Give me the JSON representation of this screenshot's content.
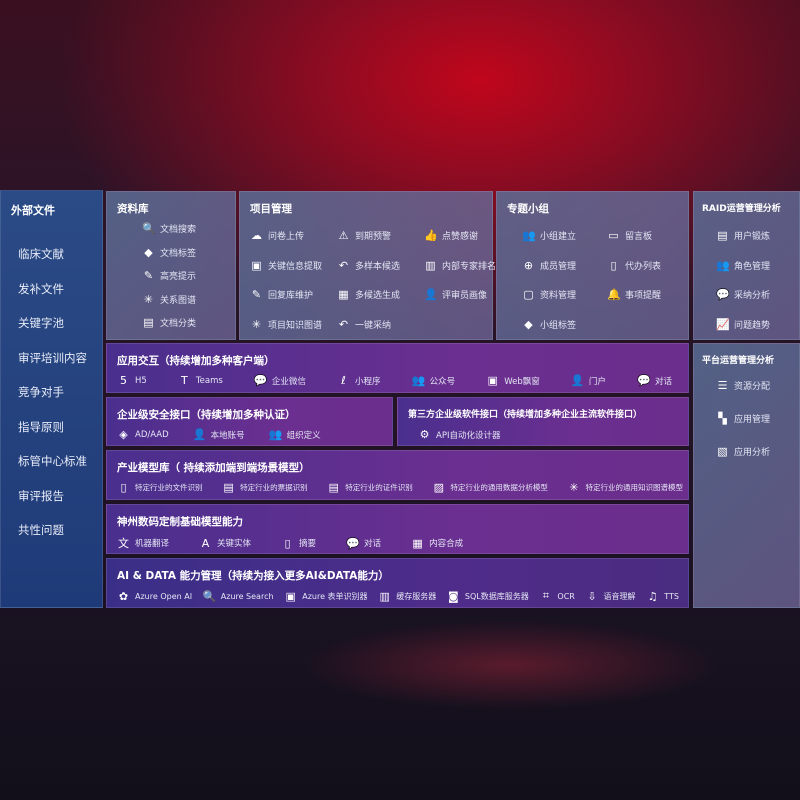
{
  "sidebar": {
    "title": "外部文件",
    "items": [
      "临床文献",
      "发补文件",
      "关键字池",
      "审评培训内容",
      "竞争对手",
      "指导原则",
      "标管中心标准",
      "审评报告",
      "共性问题"
    ]
  },
  "library": {
    "title": "资料库",
    "items": [
      {
        "icon": "doc-search-icon",
        "label": "文档搜索"
      },
      {
        "icon": "tag-icon",
        "label": "文档标签"
      },
      {
        "icon": "pen-icon",
        "label": "高亮提示"
      },
      {
        "icon": "graph-icon",
        "label": "关系图谱"
      },
      {
        "icon": "doc-classify-icon",
        "label": "文档分类"
      }
    ]
  },
  "project": {
    "title": "项目管理",
    "items": [
      {
        "icon": "cloud-upload-icon",
        "label": "问卷上传"
      },
      {
        "icon": "alarm-icon",
        "label": "到期预警"
      },
      {
        "icon": "thumbs-up-icon",
        "label": "点赞感谢"
      },
      {
        "icon": "window-icon",
        "label": "关键信息提取"
      },
      {
        "icon": "reply-icon",
        "label": "多样本候选"
      },
      {
        "icon": "ranking-icon",
        "label": "内部专家排名"
      },
      {
        "icon": "pen-icon",
        "label": "回复库维护"
      },
      {
        "icon": "puzzle-icon",
        "label": "多候选生成"
      },
      {
        "icon": "person-icon",
        "label": "评审员画像"
      },
      {
        "icon": "graph-icon",
        "label": "项目知识图谱"
      },
      {
        "icon": "reply-icon",
        "label": "一键采纳"
      }
    ]
  },
  "group": {
    "title": "专题小组",
    "items": [
      {
        "icon": "users-icon",
        "label": "小组建立"
      },
      {
        "icon": "bbs-icon",
        "label": "留言板"
      },
      {
        "icon": "user-add-icon",
        "label": "成员管理"
      },
      {
        "icon": "clipboard-icon",
        "label": "代办列表"
      },
      {
        "icon": "folder-icon",
        "label": "资料管理"
      },
      {
        "icon": "bell-icon",
        "label": "事项提醒"
      },
      {
        "icon": "tag-icon",
        "label": "小组标签"
      }
    ]
  },
  "raid": {
    "title": "RAID运营管理分析",
    "items": [
      {
        "icon": "id-card-icon",
        "label": "用户锻炼"
      },
      {
        "icon": "users-icon",
        "label": "角色管理"
      },
      {
        "icon": "qa-icon",
        "label": "采纳分析"
      },
      {
        "icon": "trend-icon",
        "label": "问题趋势"
      }
    ]
  },
  "platform": {
    "title": "平台运营管理分析",
    "items": [
      {
        "icon": "list-icon",
        "label": "资源分配"
      },
      {
        "icon": "apps-icon",
        "label": "应用管理"
      },
      {
        "icon": "analysis-icon",
        "label": "应用分析"
      }
    ]
  },
  "app": {
    "title": "应用交互（持续增加多种客户端）",
    "items": [
      {
        "icon": "html5-icon",
        "label": "H5"
      },
      {
        "icon": "teams-icon",
        "label": "Teams"
      },
      {
        "icon": "wechat-icon",
        "label": "企业微信"
      },
      {
        "icon": "miniprogram-icon",
        "label": "小程序"
      },
      {
        "icon": "users-icon",
        "label": "公众号"
      },
      {
        "icon": "window-icon",
        "label": "Web飘窗"
      },
      {
        "icon": "portal-icon",
        "label": "门户"
      },
      {
        "icon": "chat-icon",
        "label": "对话"
      }
    ]
  },
  "security": {
    "title": "企业级安全接口（持续增加多种认证）",
    "items": [
      {
        "icon": "diamond-icon",
        "label": "AD/AAD"
      },
      {
        "icon": "user-icon",
        "label": "本地账号"
      },
      {
        "icon": "org-icon",
        "label": "组织定义"
      }
    ]
  },
  "thirdparty": {
    "title": "第三方企业级软件接口（持续增加多种企业主流软件接口）",
    "items": [
      {
        "icon": "gear-icon",
        "label": "API自动化设计器"
      }
    ]
  },
  "industry": {
    "title": "产业模型库（ 持续添加端到端场景模型）",
    "items": [
      {
        "icon": "file-icon",
        "label": "特定行业的文件识别"
      },
      {
        "icon": "receipt-icon",
        "label": "特定行业的票据识别"
      },
      {
        "icon": "id-card-icon",
        "label": "特定行业的证件识别"
      },
      {
        "icon": "chart-icon",
        "label": "特定行业的通用数据分析模型"
      },
      {
        "icon": "graph-icon",
        "label": "特定行业的通用知识图谱模型"
      }
    ]
  },
  "base": {
    "title": "神州数码定制基础模型能力",
    "items": [
      {
        "icon": "translate-icon",
        "label": "机器翻译"
      },
      {
        "icon": "entity-icon",
        "label": "关键实体"
      },
      {
        "icon": "summary-icon",
        "label": "摘要"
      },
      {
        "icon": "chat-icon",
        "label": "对话"
      },
      {
        "icon": "puzzle-icon",
        "label": "内容合成"
      }
    ]
  },
  "ai": {
    "title": "AI & DATA 能力管理（持续为接入更多AI&DATA能力）",
    "items": [
      {
        "icon": "openai-icon",
        "label": "Azure Open AI"
      },
      {
        "icon": "search-icon",
        "label": "Azure Search"
      },
      {
        "icon": "form-icon",
        "label": "Azure 表单识别器"
      },
      {
        "icon": "cache-icon",
        "label": "缓存服务器"
      },
      {
        "icon": "database-icon",
        "label": "SQL数据库服务器"
      },
      {
        "icon": "ocr-icon",
        "label": "OCR"
      },
      {
        "icon": "speech-icon",
        "label": "语音理解"
      },
      {
        "icon": "tts-icon",
        "label": "TTS"
      }
    ]
  }
}
